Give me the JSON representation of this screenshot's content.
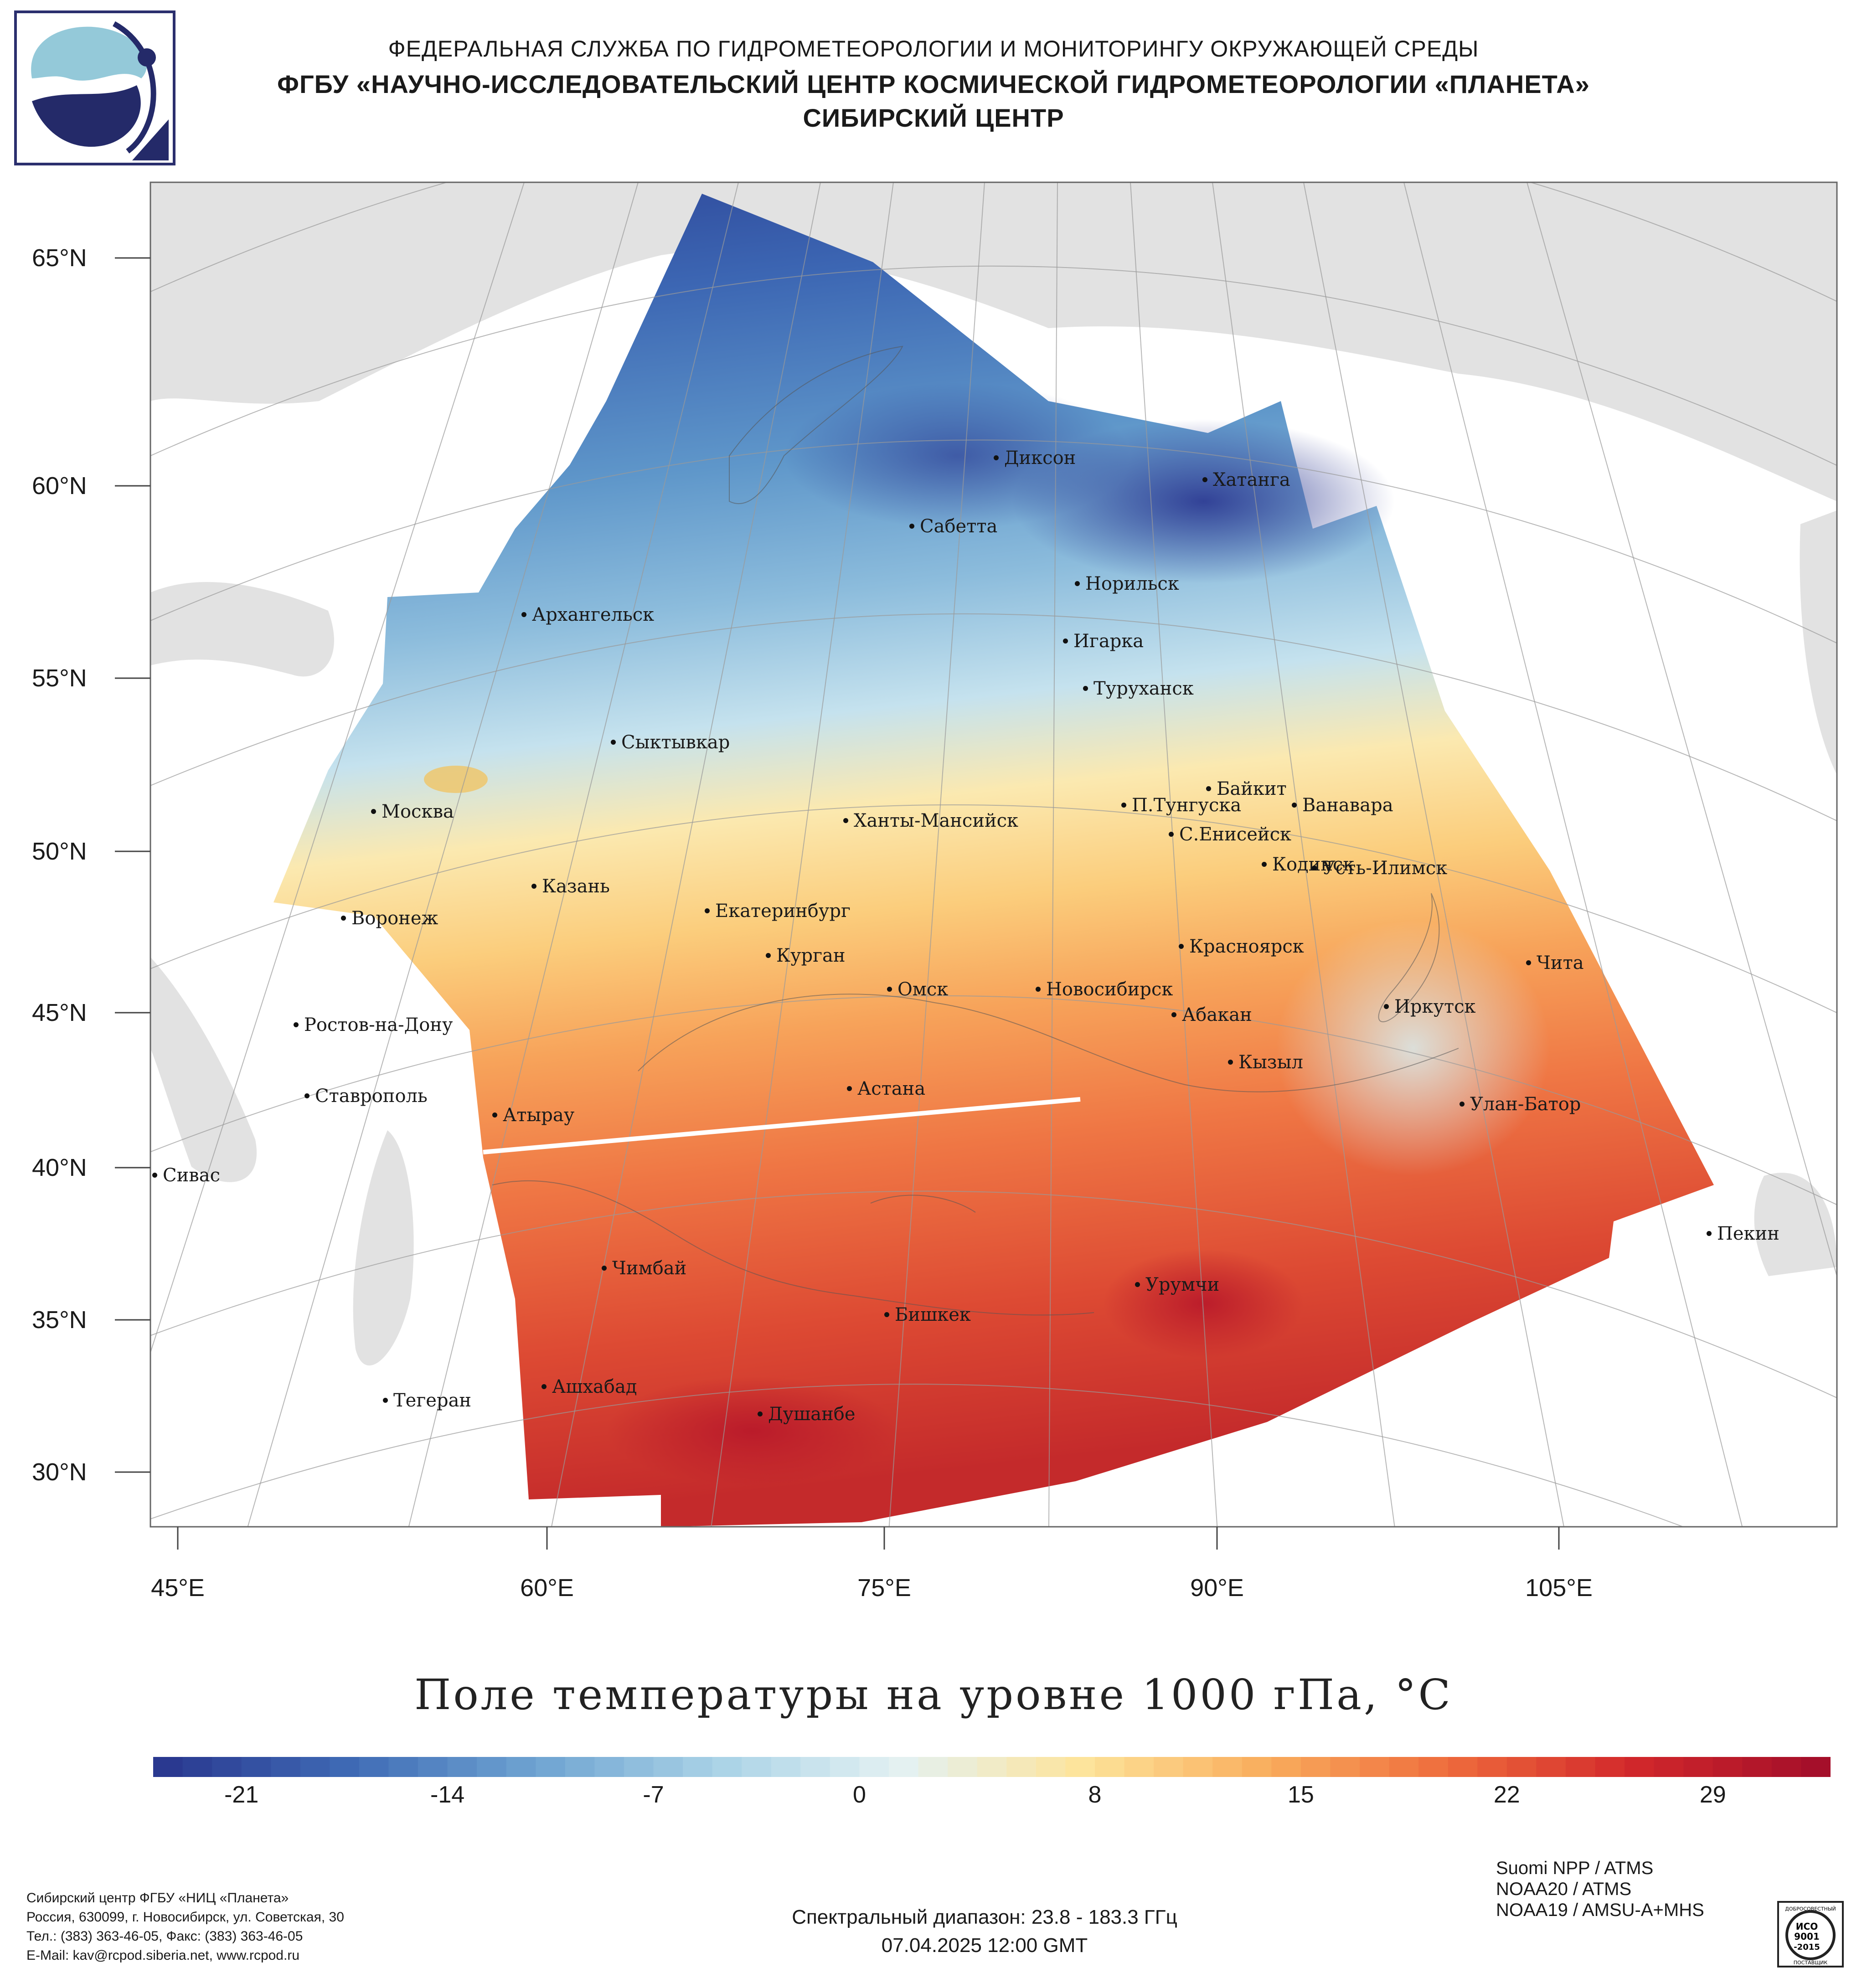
{
  "header": {
    "line1": "ФЕДЕРАЛЬНАЯ СЛУЖБА ПО ГИДРОМЕТЕОРОЛОГИИ И МОНИТОРИНГУ ОКРУЖАЮЩЕЙ СРЕДЫ",
    "line2": "ФГБУ «НАУЧНО-ИССЛЕДОВАТЕЛЬСКИЙ ЦЕНТР КОСМИЧЕСКОЙ ГИДРОМЕТЕОРОЛОГИИ «ПЛАНЕТА»",
    "line3": "СИБИРСКИЙ ЦЕНТР"
  },
  "map": {
    "lat_labels": [
      "65°N",
      "60°N",
      "55°N",
      "50°N",
      "45°N",
      "40°N",
      "35°N",
      "30°N"
    ],
    "lon_labels": [
      "45°E",
      "60°E",
      "75°E",
      "90°E",
      "105°E"
    ],
    "cities": [
      {
        "name": "Диксон"
      },
      {
        "name": "Хатанга"
      },
      {
        "name": "Сабетта"
      },
      {
        "name": "Норильск"
      },
      {
        "name": "Архангельск"
      },
      {
        "name": "Игарка"
      },
      {
        "name": "Туруханск"
      },
      {
        "name": "Сыктывкар"
      },
      {
        "name": "Байкит"
      },
      {
        "name": "П.Тунгуска"
      },
      {
        "name": "Ванавара"
      },
      {
        "name": "Москва"
      },
      {
        "name": "Ханты-Мансийск"
      },
      {
        "name": "С.Енисейск"
      },
      {
        "name": "Кодинск"
      },
      {
        "name": "Усть-Илимск"
      },
      {
        "name": "Казань"
      },
      {
        "name": "Екатеринбург"
      },
      {
        "name": "Воронеж"
      },
      {
        "name": "Красноярск"
      },
      {
        "name": "Курган"
      },
      {
        "name": "Чита"
      },
      {
        "name": "Омск"
      },
      {
        "name": "Новосибирск"
      },
      {
        "name": "Ростов-на-Дону"
      },
      {
        "name": "Иркутск"
      },
      {
        "name": "Абакан"
      },
      {
        "name": "Кызыл"
      },
      {
        "name": "Ставрополь"
      },
      {
        "name": "Астана"
      },
      {
        "name": "Улан-Батор"
      },
      {
        "name": "Атырау"
      },
      {
        "name": "Сивас"
      },
      {
        "name": "Пекин"
      },
      {
        "name": "Чимбай"
      },
      {
        "name": "Урумчи"
      },
      {
        "name": "Бишкек"
      },
      {
        "name": "Ашхабад"
      },
      {
        "name": "Тегеран"
      },
      {
        "name": "Душанбе"
      }
    ]
  },
  "map_title": "Поле температуры на уровне 1000 гПа, °C",
  "colorbar": {
    "min": -24,
    "max": 33,
    "ticks": [
      "-21",
      "-14",
      "-7",
      "0",
      "8",
      "15",
      "22",
      "29"
    ],
    "tick_values": [
      -21,
      -14,
      -7,
      0,
      8,
      15,
      22,
      29
    ],
    "colors": [
      "#2a3990",
      "#3f6bb5",
      "#6ea3d1",
      "#a9d2e6",
      "#e4f1f3",
      "#fde49a",
      "#f9ad5d",
      "#ee6b3c",
      "#d2282b",
      "#a50f2a"
    ]
  },
  "footer": {
    "org_lines": [
      "Сибирский центр ФГБУ «НИЦ «Планета»",
      "Россия, 630099, г. Новосибирск, ул. Советская, 30",
      "Тел.: (383) 363-46-05, Факс: (383) 363-46-05",
      "E-Mail: kav@rcpod.siberia.net, www.rcpod.ru"
    ],
    "spectral_range": "Спектральный диапазон: 23.8 - 183.3 ГГц",
    "datetime": "07.04.2025 12:00 GMT",
    "instruments": [
      "Suomi NPP / ATMS",
      "NOAA20 / ATMS",
      "NOAA19 / AMSU-A+MHS"
    ],
    "iso_badge": {
      "top": "ДОБРОСОВЕСТНЫЙ",
      "iso": "ИСО",
      "num": "9001",
      "year": "-2015",
      "bottom": "ПОСТАВЩИК"
    }
  }
}
